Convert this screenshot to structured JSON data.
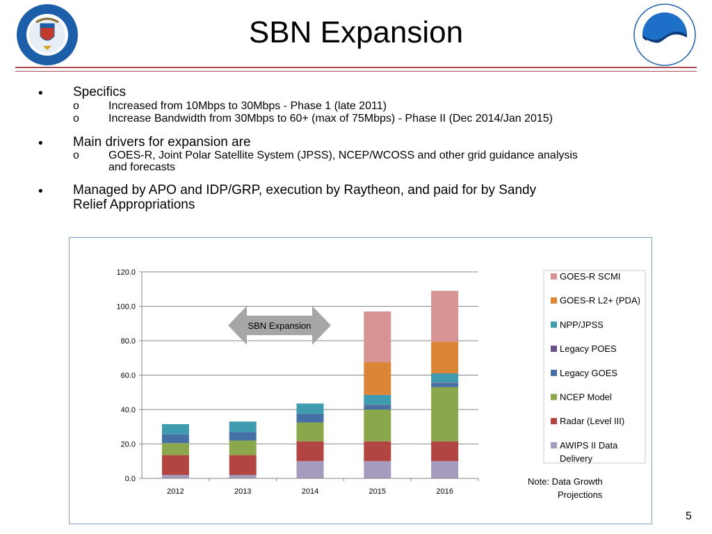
{
  "title": "SBN Expansion",
  "logos": {
    "left_name": "department-of-commerce-seal",
    "right_name": "noaa-logo"
  },
  "bullets": [
    {
      "marker": "•",
      "text": "Specifics",
      "sub": [
        {
          "marker": "o",
          "text": "Increased from 10Mbps to 30Mbps - Phase 1 (late 2011)"
        },
        {
          "marker": "o",
          "text": "Increase Bandwidth from 30Mbps to 60+ (max of 75Mbps) - Phase II (Dec 2014/Jan 2015)"
        }
      ]
    },
    {
      "marker": "•",
      "text": "Main drivers for expansion are",
      "sub": [
        {
          "marker": "o",
          "text_line1": "GOES-R, Joint Polar Satellite System (JPSS), NCEP/WCOSS and other grid guidance analysis",
          "text_line2": "and forecasts"
        }
      ]
    },
    {
      "marker": "•",
      "text_line1": "Managed by APO and IDP/GRP, execution by Raytheon, and paid for by Sandy",
      "text_line2": "Relief Appropriations"
    }
  ],
  "chart_data": {
    "type": "bar",
    "stacked": true,
    "categories": [
      "2012",
      "2013",
      "2014",
      "2015",
      "2016"
    ],
    "ylim": [
      0,
      120
    ],
    "yticks": [
      "0.0",
      "20.0",
      "40.0",
      "60.0",
      "80.0",
      "100.0",
      "120.0"
    ],
    "grid": true,
    "legend_position": "right",
    "series": [
      {
        "name": "AWIPS II Data Delivery",
        "color": "#a59bbf",
        "values": [
          2,
          2,
          10,
          10,
          10
        ]
      },
      {
        "name": "Radar (Level III)",
        "color": "#b24442",
        "values": [
          11.5,
          11.5,
          11.5,
          11.5,
          11.5
        ]
      },
      {
        "name": "NCEP Model",
        "color": "#8ba74b",
        "values": [
          7,
          8.5,
          11,
          18.5,
          31.5
        ]
      },
      {
        "name": "Legacy GOES",
        "color": "#4470a6",
        "values": [
          5,
          5,
          5,
          2,
          2
        ]
      },
      {
        "name": "Legacy POES",
        "color": "#6a4f8f",
        "values": [
          0,
          0,
          0,
          0.5,
          0.5
        ]
      },
      {
        "name": "NPP/JPSS",
        "color": "#3e9bb0",
        "values": [
          6,
          6,
          6,
          6,
          5.5
        ]
      },
      {
        "name": "GOES-R L2+ (PDA)",
        "color": "#dd8537",
        "values": [
          0,
          0,
          0,
          19,
          18.5
        ]
      },
      {
        "name": "GOES-R SCMI",
        "color": "#d69594",
        "values": [
          0,
          0,
          0,
          29.5,
          29.5
        ]
      }
    ],
    "legend_order": [
      "GOES-R SCMI",
      "GOES-R L2+ (PDA)",
      "NPP/JPSS",
      "Legacy POES",
      "Legacy GOES",
      "NCEP Model",
      "Radar (Level III)",
      "AWIPS II Data Delivery"
    ],
    "annotation": "SBN Expansion",
    "note_line1": "Note:  Data Growth",
    "note_line2": "Projections"
  },
  "page_number": "5"
}
